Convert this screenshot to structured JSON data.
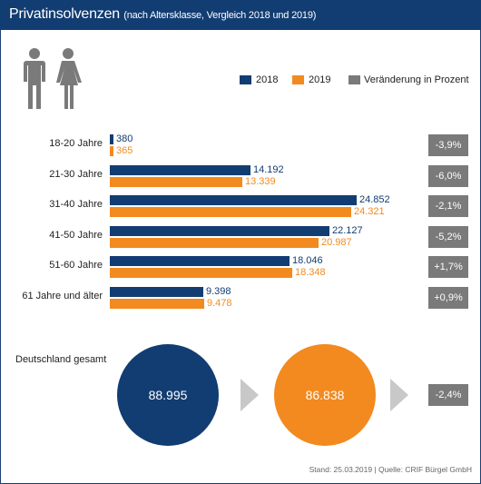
{
  "header": {
    "title": "Privatinsolvenzen",
    "subtitle": "(nach Altersklasse, Vergleich 2018 und 2019)"
  },
  "legend": {
    "items": [
      {
        "label": "2018",
        "color": "#123d72"
      },
      {
        "label": "2019",
        "color": "#f28a1f"
      },
      {
        "label": "Veränderung in Prozent",
        "color": "#7a7a7a"
      }
    ]
  },
  "colors": {
    "navy": "#123d72",
    "orange": "#f28a1f",
    "gray": "#7a7a7a",
    "arrow": "#c8c8c8"
  },
  "icons": [
    "male-person-icon",
    "female-person-icon"
  ],
  "chart_data": {
    "type": "bar",
    "orientation": "horizontal",
    "categories": [
      "18-20 Jahre",
      "21-30 Jahre",
      "31-40 Jahre",
      "41-50 Jahre",
      "51-60 Jahre",
      "61 Jahre und älter"
    ],
    "series": [
      {
        "name": "2018",
        "values": [
          380,
          14192,
          24852,
          22127,
          18046,
          9398
        ],
        "labels": [
          "380",
          "14.192",
          "24.852",
          "22.127",
          "18.046",
          "9.398"
        ]
      },
      {
        "name": "2019",
        "values": [
          365,
          13339,
          24321,
          20987,
          18348,
          9478
        ],
        "labels": [
          "365",
          "13.339",
          "24.321",
          "20.987",
          "18.348",
          "9.478"
        ]
      }
    ],
    "changes": [
      "-3,9%",
      "-6,0%",
      "-2,1%",
      "-5,2%",
      "+1,7%",
      "+0,9%"
    ],
    "total": {
      "label": "Deutschland gesamt",
      "value_2018": "88.995",
      "value_2019": "86.838",
      "change": "-2,4%"
    }
  },
  "footer": {
    "source": "Stand: 25.03.2019 | Quelle: CRIF Bürgel GmbH"
  }
}
